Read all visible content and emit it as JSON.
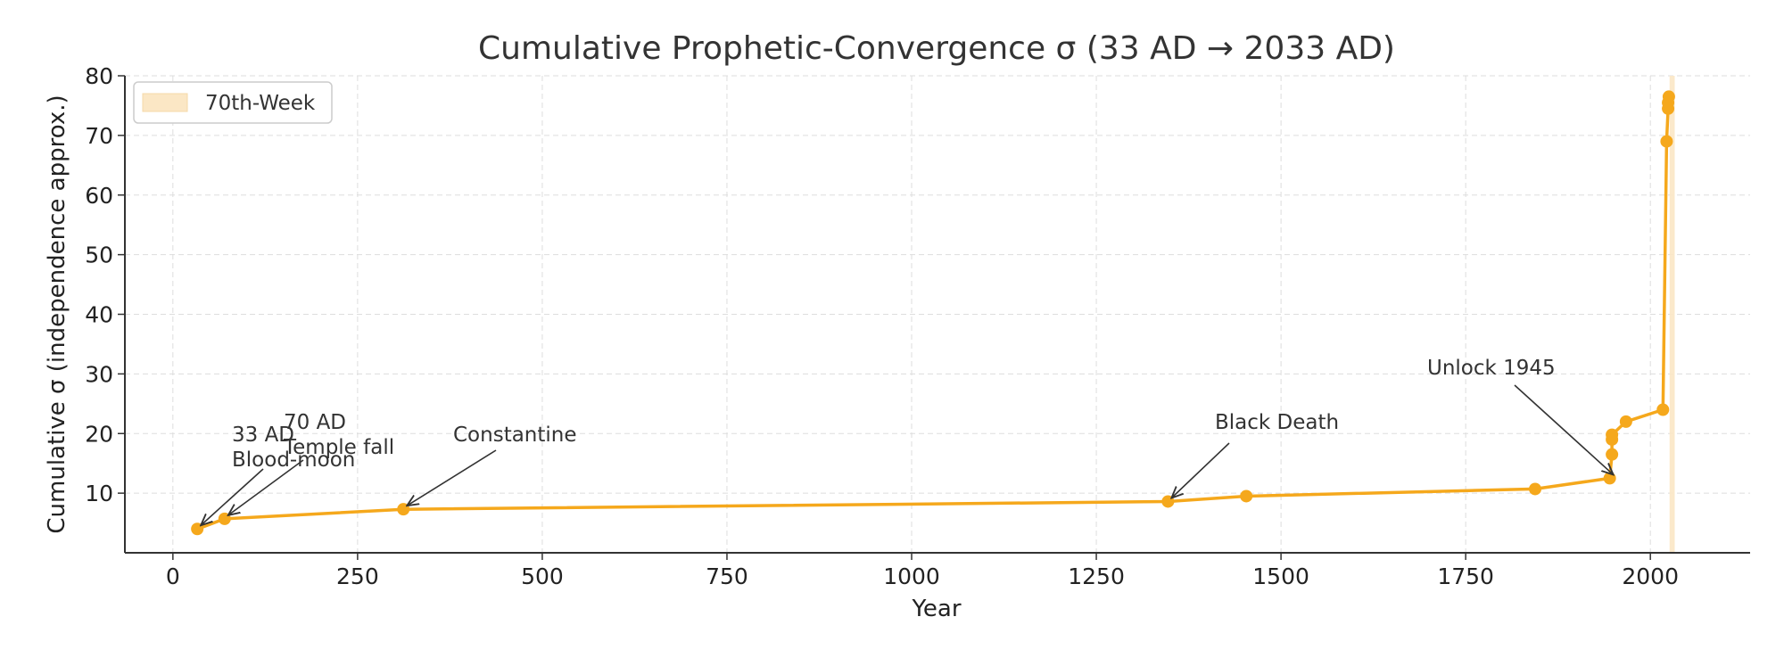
{
  "chart_data": {
    "type": "line",
    "title": "Cumulative Prophetic-Convergence σ  (33 AD → 2033 AD)",
    "xlabel": "Year",
    "ylabel": "Cumulative σ (independence approx.)",
    "xlim": [
      -65,
      2135
    ],
    "ylim": [
      0,
      80
    ],
    "xticks": [
      0,
      250,
      500,
      750,
      1000,
      1250,
      1500,
      1750,
      2000
    ],
    "yticks": [
      10,
      20,
      30,
      40,
      50,
      60,
      70,
      80
    ],
    "grid": true,
    "legend": {
      "placement": "top-left",
      "entries": [
        "70th-Week"
      ]
    },
    "series": [
      {
        "color": "#f5a81c",
        "x": [
          33,
          70,
          312,
          1347,
          1453,
          1844,
          1945,
          1948,
          1948,
          1948,
          1967,
          2017,
          2022,
          2024,
          2024,
          2025
        ],
        "y": [
          4.0,
          5.7,
          7.3,
          8.6,
          9.5,
          10.7,
          12.5,
          16.5,
          19.0,
          19.8,
          22.0,
          24.0,
          69.0,
          74.5,
          75.5,
          76.5
        ]
      }
    ],
    "shaded_region": {
      "label": "70th-Week",
      "x": [
        2026,
        2033
      ],
      "color": "#fbe7c5"
    },
    "annotations": [
      {
        "lines": [
          "33 AD",
          "Blood-moon"
        ],
        "point": [
          33,
          4.0
        ]
      },
      {
        "lines": [
          "70 AD",
          "Temple fall"
        ],
        "point": [
          70,
          5.7
        ]
      },
      {
        "lines": [
          "Constantine"
        ],
        "point": [
          312,
          7.3
        ]
      },
      {
        "lines": [
          "Black Death"
        ],
        "point": [
          1347,
          8.6
        ]
      },
      {
        "lines": [
          "Unlock 1945"
        ],
        "point": [
          1945,
          12.5
        ]
      }
    ]
  }
}
